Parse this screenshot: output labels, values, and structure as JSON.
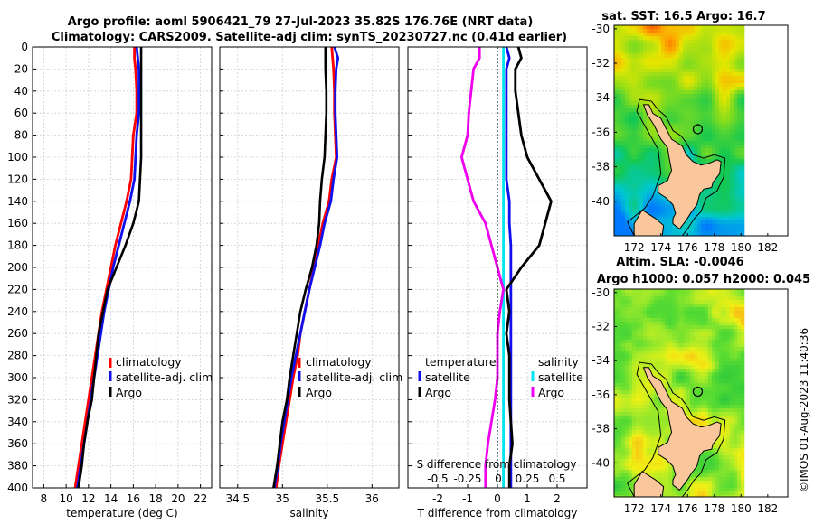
{
  "figure": {
    "title_line1": "Argo profile: aoml 5906421_79 27-Jul-2023 35.82S 176.76E (NRT data)",
    "title_line2": "Climatology: CARS2009. Satellite-adj clim: synTS_20230727.nc (0.41d earlier)",
    "footer": "©IMOS 01-Aug-2023 11:40:36",
    "map_top_title": "sat. SST: 16.5 Argo: 16.7",
    "map_bottom_title_line1": "Altim. SLA: -0.0046",
    "map_bottom_title_line2": "Argo h1000: 0.057 h2000: 0.045"
  },
  "colors": {
    "climatology": "#ff0000",
    "satellite": "#1010ee",
    "argo": "#000000",
    "sal_satellite": "#00e5ee",
    "sal_argo": "#ee00ee",
    "land": "#f9c79b"
  },
  "chart_data": [
    {
      "type": "line",
      "id": "temperature",
      "xlabel": "temperature (deg C)",
      "ylabel": "",
      "xlim": [
        7,
        23
      ],
      "ylim": [
        400,
        0
      ],
      "xticks": [
        "8",
        "10",
        "12",
        "14",
        "16",
        "18",
        "20",
        "22"
      ],
      "yticks": [
        "0",
        "20",
        "40",
        "60",
        "80",
        "100",
        "120",
        "140",
        "160",
        "180",
        "200",
        "220",
        "240",
        "260",
        "280",
        "300",
        "320",
        "340",
        "360",
        "380",
        "400"
      ],
      "depth": [
        0,
        10,
        20,
        40,
        60,
        80,
        100,
        120,
        140,
        160,
        180,
        200,
        220,
        240,
        260,
        280,
        300,
        320,
        340,
        360,
        380,
        400
      ],
      "series": [
        {
          "name": "climatology",
          "values": [
            16.1,
            16.1,
            16.2,
            16.3,
            16.3,
            16.0,
            15.9,
            15.8,
            15.4,
            14.9,
            14.4,
            14.0,
            13.6,
            13.2,
            12.9,
            12.6,
            12.3,
            12.0,
            11.7,
            11.4,
            11.1,
            10.8
          ]
        },
        {
          "name": "satellite-adj. clim",
          "values": [
            16.3,
            16.4,
            16.5,
            16.5,
            16.5,
            16.3,
            16.2,
            16.1,
            15.7,
            15.2,
            14.7,
            14.2,
            13.8,
            13.4,
            13.1,
            12.8,
            12.5,
            12.2,
            11.9,
            11.6,
            11.3,
            11.0
          ]
        },
        {
          "name": "Argo",
          "values": [
            16.7,
            16.7,
            16.7,
            16.7,
            16.7,
            16.7,
            16.7,
            16.6,
            16.5,
            16.0,
            15.3,
            14.5,
            13.7,
            13.3,
            12.9,
            12.7,
            12.5,
            12.3,
            11.9,
            11.6,
            11.4,
            11.1
          ]
        }
      ],
      "legend": [
        "climatology",
        "satellite-adj. clim",
        "Argo"
      ]
    },
    {
      "type": "line",
      "id": "salinity",
      "xlabel": "salinity",
      "ylabel": "",
      "xlim": [
        34.3,
        36.3
      ],
      "ylim": [
        400,
        0
      ],
      "xticks": [
        "34.5",
        "35",
        "35.5",
        "36"
      ],
      "depth": [
        0,
        10,
        20,
        40,
        60,
        80,
        100,
        120,
        140,
        160,
        180,
        200,
        220,
        240,
        260,
        280,
        300,
        320,
        340,
        360,
        380,
        400
      ],
      "series": [
        {
          "name": "climatology",
          "values": [
            35.55,
            35.56,
            35.57,
            35.58,
            35.58,
            35.59,
            35.6,
            35.55,
            35.52,
            35.45,
            35.4,
            35.35,
            35.3,
            35.25,
            35.2,
            35.17,
            35.12,
            35.08,
            35.04,
            35.0,
            34.96,
            34.93
          ]
        },
        {
          "name": "satellite-adj. clim",
          "values": [
            35.58,
            35.62,
            35.6,
            35.59,
            35.59,
            35.6,
            35.61,
            35.57,
            35.54,
            35.47,
            35.42,
            35.36,
            35.3,
            35.25,
            35.2,
            35.15,
            35.1,
            35.06,
            35.02,
            34.98,
            34.95,
            34.91
          ]
        },
        {
          "name": "Argo",
          "values": [
            35.48,
            35.48,
            35.48,
            35.49,
            35.49,
            35.48,
            35.47,
            35.44,
            35.42,
            35.41,
            35.38,
            35.33,
            35.26,
            35.2,
            35.16,
            35.12,
            35.08,
            35.05,
            35.0,
            34.97,
            34.94,
            34.9
          ]
        }
      ],
      "legend": [
        "climatology",
        "satellite-adj. clim",
        "Argo"
      ]
    },
    {
      "type": "line",
      "id": "difference",
      "xlabel": "T difference from climatology",
      "xlabel_top": "S difference from climatology",
      "ylabel": "",
      "xlim": [
        -3,
        3
      ],
      "ylim": [
        400,
        0
      ],
      "xticks": [
        "-2",
        "-1",
        "0",
        "1",
        "2"
      ],
      "xticks_top": [
        "-0.5",
        "-0.25",
        "0",
        "0.25",
        "0.5"
      ],
      "depth": [
        0,
        10,
        20,
        40,
        60,
        80,
        100,
        120,
        140,
        160,
        180,
        200,
        220,
        240,
        260,
        280,
        300,
        320,
        340,
        360,
        380,
        400
      ],
      "series": [
        {
          "name": "temperature satellite",
          "values": [
            0.3,
            0.4,
            0.3,
            0.3,
            0.3,
            0.3,
            0.3,
            0.3,
            0.4,
            0.4,
            0.45,
            0.45,
            0.45,
            0.45,
            0.45,
            0.45,
            0.45,
            0.45,
            0.45,
            0.45,
            0.45,
            0.45
          ]
        },
        {
          "name": "temperature Argo",
          "values": [
            0.7,
            0.8,
            0.6,
            0.6,
            0.7,
            0.8,
            1.0,
            1.4,
            1.8,
            1.6,
            1.4,
            0.8,
            0.3,
            0.4,
            0.3,
            0.4,
            0.4,
            0.4,
            0.45,
            0.5,
            0.4,
            0.4
          ]
        },
        {
          "name": "salinity satellite",
          "values": [
            0.05,
            0.05,
            0.05,
            0.05,
            0.05,
            0.05,
            0.05,
            0.05,
            0.05,
            0.05,
            0.05,
            0.05,
            0.05,
            0.05,
            0.05,
            0.05,
            0.05,
            0.05,
            0.05,
            0.05,
            0.05,
            0.05
          ]
        },
        {
          "name": "salinity Argo",
          "values": [
            -0.15,
            -0.15,
            -0.2,
            -0.22,
            -0.24,
            -0.25,
            -0.3,
            -0.25,
            -0.2,
            -0.1,
            -0.05,
            0.0,
            0.05,
            0.02,
            0.0,
            0.0,
            0.0,
            -0.02,
            -0.05,
            -0.08,
            -0.1,
            -0.1
          ]
        }
      ],
      "legend_temperature_title": "temperature",
      "legend_salinity_title": "salinity",
      "legend_entries": [
        "satellite",
        "Argo"
      ]
    },
    {
      "type": "heatmap",
      "id": "sst_map",
      "xlim": [
        170.5,
        183.5
      ],
      "ylim": [
        -42,
        -29.8
      ],
      "xticks": [
        "172",
        "174",
        "176",
        "178",
        "180",
        "182"
      ],
      "yticks": [
        "-30",
        "-32",
        "-34",
        "-36",
        "-38",
        "-40"
      ],
      "argo_position": [
        176.76,
        -35.82
      ]
    },
    {
      "type": "heatmap",
      "id": "sla_map",
      "xlim": [
        170.5,
        183.5
      ],
      "ylim": [
        -42,
        -29.8
      ],
      "xticks": [
        "172",
        "174",
        "176",
        "178",
        "180",
        "182"
      ],
      "yticks": [
        "-30",
        "-32",
        "-34",
        "-36",
        "-38",
        "-40"
      ],
      "argo_position": [
        176.76,
        -35.82
      ]
    }
  ]
}
